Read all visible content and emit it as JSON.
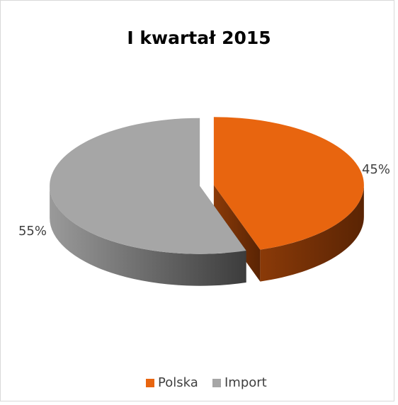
{
  "chart_data": {
    "type": "pie3d",
    "title": "I kwartał 2015",
    "categories": [
      "Polska",
      "Import"
    ],
    "values": [
      45,
      55
    ],
    "value_labels": [
      "45%",
      "55%"
    ],
    "colors": [
      "#e8650f",
      "#a6a6a6"
    ],
    "legend": "bottom"
  }
}
